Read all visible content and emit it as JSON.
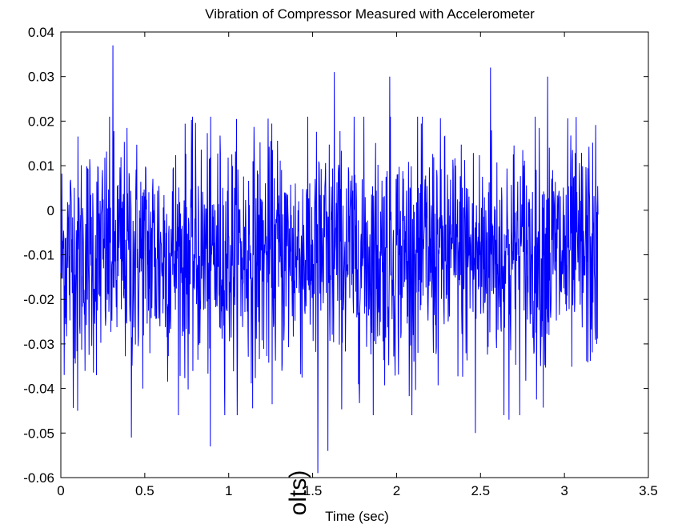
{
  "chart_data": {
    "type": "line",
    "title": "Vibration of Compressor Measured with Accelerometer",
    "xlabel": "Time (sec)",
    "ylabel_visible_fragment": "olts)",
    "xlim": [
      0,
      3.5
    ],
    "ylim": [
      -0.06,
      0.04
    ],
    "x_ticks": [
      0,
      0.5,
      1,
      1.5,
      2,
      2.5,
      3,
      3.5
    ],
    "y_ticks": [
      -0.06,
      -0.05,
      -0.04,
      -0.03,
      -0.02,
      -0.01,
      0,
      0.01,
      0.02,
      0.03,
      0.04
    ],
    "x_tick_labels": [
      "0",
      "0.5",
      "1",
      "1.5",
      "2",
      "2.5",
      "3",
      "3.5"
    ],
    "y_tick_labels": [
      "-0.06",
      "-0.05",
      "-0.04",
      "-0.03",
      "-0.02",
      "-0.01",
      "0",
      "0.01",
      "0.02",
      "0.03",
      "0.04"
    ],
    "grid": false,
    "series": [
      {
        "color": "#0000ff",
        "x_start": 0,
        "x_end": 3.2,
        "sample_count": 1600,
        "mean": -0.01,
        "typical_range": [
          -0.04,
          0.015
        ],
        "extremes": [
          {
            "x": 0.31,
            "y": 0.037
          },
          {
            "x": 1.53,
            "y": -0.059
          },
          {
            "x": 2.56,
            "y": 0.032
          },
          {
            "x": 1.96,
            "y": 0.03
          },
          {
            "x": 1.63,
            "y": 0.031
          },
          {
            "x": 2.9,
            "y": 0.03
          },
          {
            "x": 0.89,
            "y": -0.053
          },
          {
            "x": 0.42,
            "y": -0.051
          },
          {
            "x": 1.59,
            "y": -0.054
          },
          {
            "x": 2.67,
            "y": -0.047
          },
          {
            "x": 0.1,
            "y": -0.045
          },
          {
            "x": 2.47,
            "y": -0.05
          }
        ]
      }
    ]
  }
}
